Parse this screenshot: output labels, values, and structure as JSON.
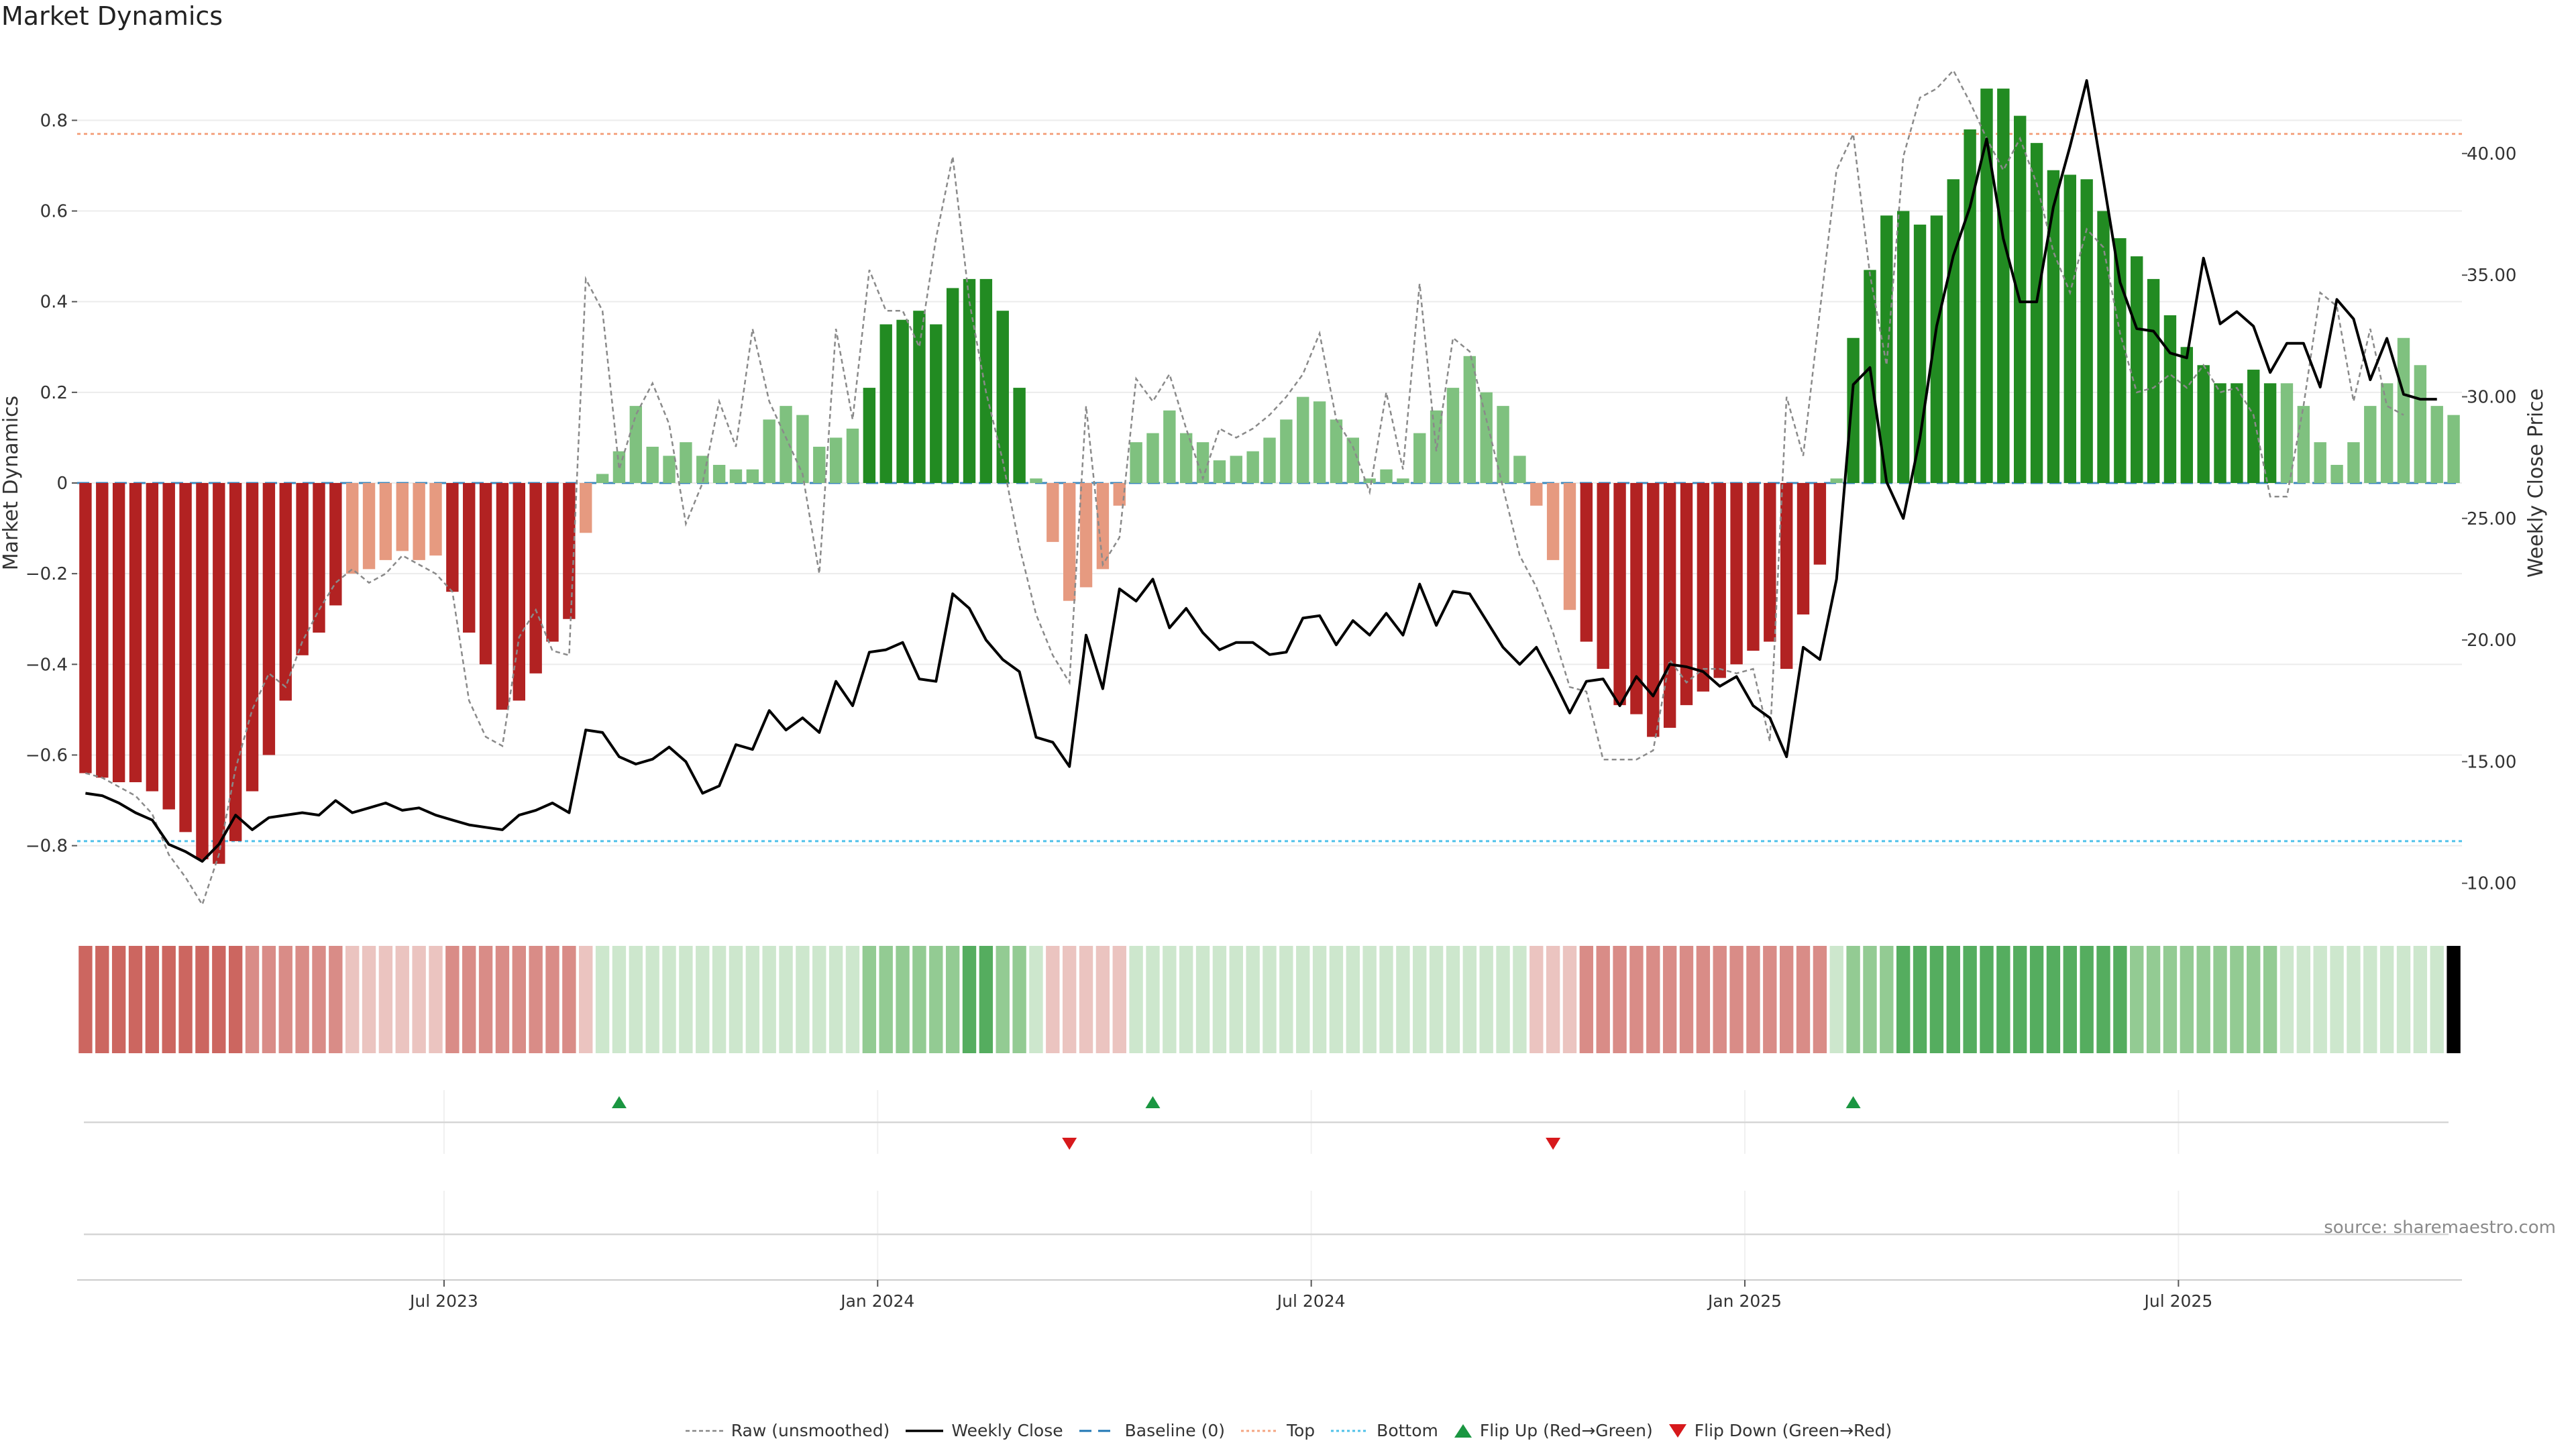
{
  "chart_data": {
    "type": "bar",
    "title": "Market Dynamics",
    "ylabel_left": "Market Dynamics",
    "ylabel_right": "Weekly Close Price",
    "source": "source: sharemaestro.com",
    "ylim_left": [
      -0.95,
      0.95
    ],
    "ylim_right": [
      8.75,
      44.16
    ],
    "yticks_left": [
      "0.8",
      "0.6",
      "0.4",
      "0.2",
      "0",
      "−0.2",
      "−0.4",
      "−0.6",
      "−0.8"
    ],
    "ytick_values_left": [
      0.8,
      0.6,
      0.4,
      0.2,
      0,
      -0.2,
      -0.4,
      -0.6,
      -0.8
    ],
    "yticks_right": [
      "40.00",
      "35.00",
      "30.00",
      "25.00",
      "20.00",
      "15.00",
      "10.00"
    ],
    "ytick_values_right": [
      40,
      35,
      30,
      25,
      20,
      15,
      10
    ],
    "xticks": [
      {
        "label": "Jul 2023",
        "index": 21.5
      },
      {
        "label": "Jan 2024",
        "index": 47.5
      },
      {
        "label": "Jul 2024",
        "index": 73.5
      },
      {
        "label": "Jan 2025",
        "index": 99.5
      },
      {
        "label": "Jul 2025",
        "index": 125.5
      }
    ],
    "top_line": 0.77,
    "bottom_line": -0.79,
    "baseline": 0,
    "grid": true,
    "legend_position": "bottom",
    "series": [
      {
        "name": "Raw (unsmoothed)",
        "style": "dashed",
        "color": "#888888"
      },
      {
        "name": "Weekly Close",
        "style": "solid",
        "color": "#000000"
      },
      {
        "name": "Baseline (0)",
        "style": "dashed",
        "color": "#1f77b4"
      },
      {
        "name": "Top",
        "style": "dotted",
        "color": "#f4a582"
      },
      {
        "name": "Bottom",
        "style": "dotted",
        "color": "#4fc1e9"
      },
      {
        "name": "Flip Up (Red→Green)",
        "style": "marker-up",
        "color": "#1a9641"
      },
      {
        "name": "Flip Down (Green→Red)",
        "style": "marker-down",
        "color": "#d7191c"
      }
    ],
    "bars": [
      -0.64,
      -0.65,
      -0.66,
      -0.66,
      -0.68,
      -0.72,
      -0.77,
      -0.83,
      -0.84,
      -0.79,
      -0.68,
      -0.6,
      -0.48,
      -0.38,
      -0.33,
      -0.27,
      -0.2,
      -0.19,
      -0.17,
      -0.15,
      -0.17,
      -0.16,
      -0.24,
      -0.33,
      -0.4,
      -0.5,
      -0.48,
      -0.42,
      -0.35,
      -0.3,
      -0.11,
      0.02,
      0.07,
      0.17,
      0.08,
      0.06,
      0.09,
      0.06,
      0.04,
      0.03,
      0.03,
      0.14,
      0.17,
      0.15,
      0.08,
      0.1,
      0.12,
      0.21,
      0.35,
      0.36,
      0.38,
      0.35,
      0.43,
      0.45,
      0.45,
      0.38,
      0.21,
      0.01,
      -0.13,
      -0.26,
      -0.23,
      -0.19,
      -0.05,
      0.09,
      0.11,
      0.16,
      0.11,
      0.09,
      0.05,
      0.06,
      0.07,
      0.1,
      0.14,
      0.19,
      0.18,
      0.14,
      0.1,
      0.01,
      0.03,
      0.01,
      0.11,
      0.16,
      0.21,
      0.28,
      0.2,
      0.17,
      0.06,
      -0.05,
      -0.17,
      -0.28,
      -0.35,
      -0.41,
      -0.49,
      -0.51,
      -0.56,
      -0.54,
      -0.49,
      -0.46,
      -0.43,
      -0.4,
      -0.37,
      -0.35,
      -0.41,
      -0.29,
      -0.18,
      0.01,
      0.32,
      0.47,
      0.59,
      0.6,
      0.57,
      0.59,
      0.67,
      0.78,
      0.87,
      0.87,
      0.81,
      0.75,
      0.69,
      0.68,
      0.67,
      0.6,
      0.54,
      0.5,
      0.45,
      0.37,
      0.3,
      0.26,
      0.22,
      0.22,
      0.25,
      0.22,
      0.22,
      0.17,
      0.09,
      0.04,
      0.09,
      0.17,
      0.22,
      0.32,
      0.26,
      0.17,
      0.15
    ],
    "raw": [
      -0.64,
      -0.65,
      -0.67,
      -0.69,
      -0.73,
      -0.82,
      -0.87,
      -0.93,
      -0.82,
      -0.63,
      -0.5,
      -0.42,
      -0.45,
      -0.35,
      -0.28,
      -0.22,
      -0.19,
      -0.22,
      -0.2,
      -0.16,
      -0.18,
      -0.2,
      -0.24,
      -0.48,
      -0.56,
      -0.58,
      -0.34,
      -0.28,
      -0.37,
      -0.38,
      0.45,
      0.38,
      0.03,
      0.15,
      0.22,
      0.13,
      -0.09,
      0.0,
      0.18,
      0.08,
      0.34,
      0.18,
      0.1,
      0.02,
      -0.2,
      0.34,
      0.14,
      0.47,
      0.38,
      0.38,
      0.3,
      0.54,
      0.72,
      0.4,
      0.2,
      0.05,
      -0.14,
      -0.29,
      -0.38,
      -0.44,
      0.17,
      -0.18,
      -0.12,
      0.23,
      0.18,
      0.24,
      0.12,
      0.01,
      0.12,
      0.1,
      0.12,
      0.15,
      0.19,
      0.24,
      0.33,
      0.14,
      0.08,
      -0.02,
      0.2,
      0.03,
      0.44,
      0.07,
      0.32,
      0.29,
      0.14,
      -0.01,
      -0.16,
      -0.23,
      -0.33,
      -0.45,
      -0.46,
      -0.61,
      -0.61,
      -0.61,
      -0.59,
      -0.39,
      -0.44,
      -0.41,
      -0.41,
      -0.42,
      -0.41,
      -0.57,
      0.19,
      0.06,
      0.38,
      0.69,
      0.77,
      0.46,
      0.26,
      0.72,
      0.85,
      0.87,
      0.91,
      0.84,
      0.76,
      0.69,
      0.76,
      0.66,
      0.51,
      0.42,
      0.56,
      0.52,
      0.33,
      0.2,
      0.21,
      0.24,
      0.21,
      0.26,
      0.2,
      0.21,
      0.15,
      -0.03,
      -0.03,
      0.17,
      0.42,
      0.39,
      0.18,
      0.34,
      0.17,
      0.15
    ],
    "close": [
      13.7,
      13.6,
      13.3,
      12.9,
      12.6,
      11.6,
      11.3,
      10.9,
      11.6,
      12.8,
      12.2,
      12.7,
      12.8,
      12.9,
      12.8,
      13.4,
      12.9,
      13.1,
      13.3,
      13.0,
      13.1,
      12.8,
      12.6,
      12.4,
      12.3,
      12.2,
      12.8,
      13.0,
      13.3,
      12.9,
      16.3,
      16.2,
      15.2,
      14.9,
      15.1,
      15.6,
      15.0,
      13.7,
      14.0,
      15.7,
      15.5,
      17.1,
      16.3,
      16.8,
      16.2,
      18.3,
      17.3,
      19.5,
      19.6,
      19.9,
      18.4,
      18.3,
      21.9,
      21.3,
      20.0,
      19.2,
      18.7,
      16.0,
      15.8,
      14.8,
      20.2,
      18.0,
      22.1,
      21.6,
      22.5,
      20.5,
      21.3,
      20.3,
      19.6,
      19.9,
      19.9,
      19.4,
      19.5,
      20.9,
      21.0,
      19.8,
      20.8,
      20.2,
      21.1,
      20.2,
      22.3,
      20.6,
      22.0,
      21.9,
      20.8,
      19.7,
      19.0,
      19.7,
      18.4,
      17.0,
      18.3,
      18.4,
      17.3,
      18.5,
      17.7,
      19.0,
      18.9,
      18.7,
      18.1,
      18.5,
      17.3,
      16.8,
      15.2,
      19.7,
      19.2,
      22.5,
      30.5,
      31.2,
      26.5,
      25.0,
      28.3,
      32.9,
      35.8,
      37.8,
      40.6,
      36.5,
      33.9,
      33.9,
      37.8,
      40.3,
      43.0,
      38.9,
      34.7,
      32.8,
      32.7,
      31.8,
      31.6,
      35.7,
      33.0,
      33.5,
      32.9,
      31.0,
      32.2,
      32.2,
      30.4,
      34.0,
      33.2,
      30.7,
      32.4,
      30.1,
      29.9,
      29.9
    ],
    "color_intensity": [
      3,
      3,
      3,
      3,
      3,
      3,
      3,
      3,
      3,
      3,
      2,
      2,
      2,
      2,
      2,
      2,
      1,
      1,
      1,
      1,
      1,
      1,
      2,
      2,
      2,
      2,
      2,
      2,
      2,
      2,
      1,
      1,
      1,
      1,
      1,
      1,
      1,
      1,
      1,
      1,
      1,
      1,
      1,
      1,
      1,
      1,
      1,
      2,
      2,
      2,
      2,
      2,
      2,
      3,
      3,
      2,
      2,
      1,
      1,
      1,
      1,
      1,
      1,
      1,
      1,
      1,
      1,
      1,
      1,
      1,
      1,
      1,
      1,
      1,
      1,
      1,
      1,
      1,
      1,
      1,
      1,
      1,
      1,
      1,
      1,
      1,
      1,
      1,
      1,
      1,
      2,
      2,
      2,
      2,
      2,
      2,
      2,
      2,
      2,
      2,
      2,
      2,
      2,
      2,
      2,
      1,
      2,
      2,
      2,
      3,
      3,
      3,
      3,
      3,
      3,
      3,
      3,
      3,
      3,
      3,
      3,
      3,
      3,
      2,
      2,
      2,
      2,
      2,
      2,
      2,
      2,
      2,
      1,
      1,
      1,
      1,
      1,
      1,
      1,
      1,
      1,
      1
    ],
    "flip_up_index": [
      32,
      64,
      106
    ],
    "flip_down_index": [
      59,
      88
    ]
  }
}
